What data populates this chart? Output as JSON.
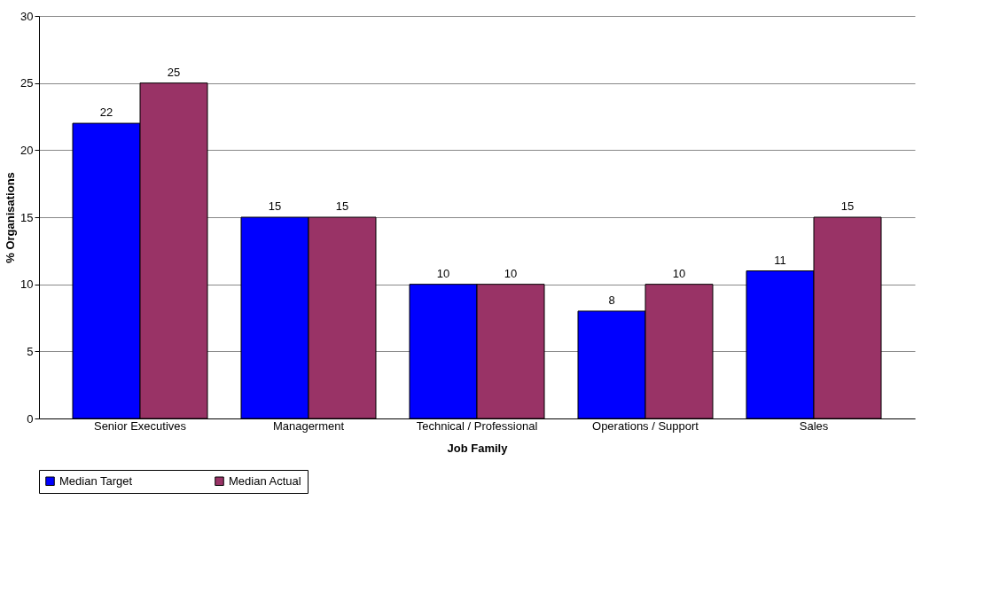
{
  "chart_data": {
    "type": "bar",
    "xlabel": "Job Family",
    "ylabel": "% Organisations",
    "categories": [
      "Senior Executives",
      "Managerment",
      "Technical / Professional",
      "Operations / Support",
      "Sales"
    ],
    "series": [
      {
        "name": "Median Target",
        "color": "#0000ff",
        "values": [
          22,
          15,
          10,
          8,
          11
        ]
      },
      {
        "name": "Median Actual",
        "color": "#993366",
        "values": [
          25,
          15,
          10,
          10,
          15
        ]
      }
    ],
    "ylim": [
      0,
      30
    ],
    "yticks": [
      0,
      5,
      10,
      15,
      20,
      25,
      30
    ],
    "grid": "y",
    "legend": "bottom",
    "data_labels": true
  }
}
